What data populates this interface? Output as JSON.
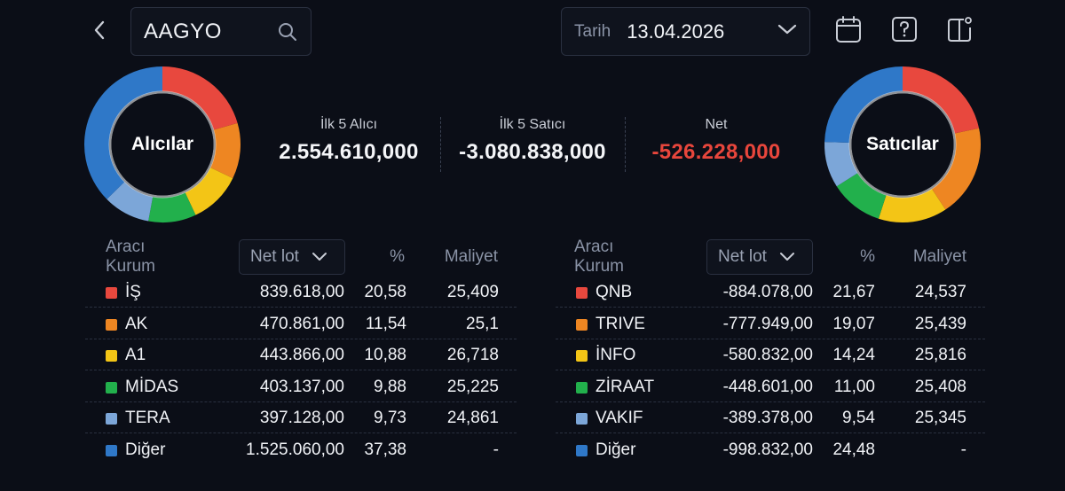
{
  "search": {
    "symbol": "AAGYO"
  },
  "date": {
    "label": "Tarih",
    "value": "13.04.2026"
  },
  "donuts": {
    "buyers_label": "Alıcılar",
    "sellers_label": "Satıcılar",
    "buyers_shares": [
      20.58,
      11.54,
      10.88,
      9.88,
      9.73,
      37.38
    ],
    "sellers_shares": [
      21.67,
      19.07,
      14.24,
      11.0,
      9.54,
      24.48
    ]
  },
  "summary": {
    "buyers": {
      "label": "İlk 5 Alıcı",
      "value": "2.554.610,000"
    },
    "sellers": {
      "label": "İlk 5 Satıcı",
      "value": "-3.080.838,000"
    },
    "net": {
      "label": "Net",
      "value": "-526.228,000"
    }
  },
  "colors": {
    "red": "#e8483e",
    "orange": "#ee8622",
    "yellow": "#f3c516",
    "green": "#22b04c",
    "lightblue": "#7ca6d8",
    "blue": "#2f78c8",
    "negative": "#e8463c"
  },
  "headers": {
    "broker": "Aracı Kurum",
    "netlot": "Net lot",
    "pct": "%",
    "cost": "Maliyet"
  },
  "buyers_table": [
    {
      "name": "İŞ",
      "netlot": "839.618,00",
      "pct": "20,58",
      "cost": "25,409",
      "color": "#e8483e"
    },
    {
      "name": "AK",
      "netlot": "470.861,00",
      "pct": "11,54",
      "cost": "25,1",
      "color": "#ee8622"
    },
    {
      "name": "A1",
      "netlot": "443.866,00",
      "pct": "10,88",
      "cost": "26,718",
      "color": "#f3c516"
    },
    {
      "name": "MİDAS",
      "netlot": "403.137,00",
      "pct": "9,88",
      "cost": "25,225",
      "color": "#22b04c"
    },
    {
      "name": "TERA",
      "netlot": "397.128,00",
      "pct": "9,73",
      "cost": "24,861",
      "color": "#7ca6d8"
    },
    {
      "name": "Diğer",
      "netlot": "1.525.060,00",
      "pct": "37,38",
      "cost": "-",
      "color": "#2f78c8"
    }
  ],
  "sellers_table": [
    {
      "name": "QNB",
      "netlot": "-884.078,00",
      "pct": "21,67",
      "cost": "24,537",
      "color": "#e8483e"
    },
    {
      "name": "TRIVE",
      "netlot": "-777.949,00",
      "pct": "19,07",
      "cost": "25,439",
      "color": "#ee8622"
    },
    {
      "name": "İNFO",
      "netlot": "-580.832,00",
      "pct": "14,24",
      "cost": "25,816",
      "color": "#f3c516"
    },
    {
      "name": "ZİRAAT",
      "netlot": "-448.601,00",
      "pct": "11,00",
      "cost": "25,408",
      "color": "#22b04c"
    },
    {
      "name": "VAKIF",
      "netlot": "-389.378,00",
      "pct": "9,54",
      "cost": "25,345",
      "color": "#7ca6d8"
    },
    {
      "name": "Diğer",
      "netlot": "-998.832,00",
      "pct": "24,48",
      "cost": "-",
      "color": "#2f78c8"
    }
  ]
}
